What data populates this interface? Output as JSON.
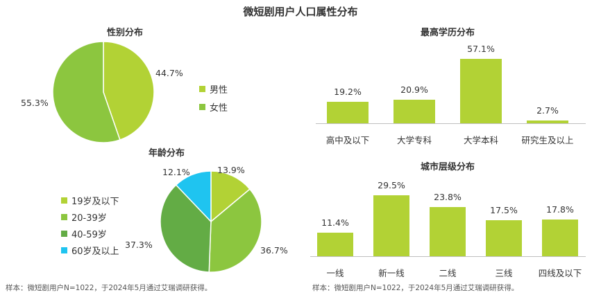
{
  "title": "微短剧用户人口属性分布",
  "source_left": "样本：微短剧用户N=1022，于2024年5月通过艾瑞调研获得。",
  "source_right": "样本：微短剧用户N=1022，于2024年5月通过艾瑞调研获得。",
  "chart_data": [
    {
      "id": "gender",
      "type": "pie",
      "title": "性别分布",
      "categories": [
        "男性",
        "女性"
      ],
      "values": [
        44.7,
        55.3
      ],
      "value_labels": [
        "44.7%",
        "55.3%"
      ],
      "colors": [
        "#b2d235",
        "#8cc63f"
      ]
    },
    {
      "id": "age",
      "type": "pie",
      "title": "年龄分布",
      "categories": [
        "19岁及以下",
        "20-39岁",
        "40-59岁",
        "60岁及以上"
      ],
      "values": [
        13.9,
        36.7,
        37.3,
        12.1
      ],
      "value_labels": [
        "13.9%",
        "36.7%",
        "37.3%",
        "12.1%"
      ],
      "colors": [
        "#b2d235",
        "#8cc63f",
        "#63ac45",
        "#1fc4f0"
      ]
    },
    {
      "id": "education",
      "type": "bar",
      "title": "最高学历分布",
      "categories": [
        "高中及以下",
        "大学专科",
        "大学本科",
        "研究生及以上"
      ],
      "values": [
        19.2,
        20.9,
        57.1,
        2.7
      ],
      "value_labels": [
        "19.2%",
        "20.9%",
        "57.1%",
        "2.7%"
      ],
      "color": "#b2d235"
    },
    {
      "id": "city",
      "type": "bar",
      "title": "城市层级分布",
      "categories": [
        "一线",
        "新一线",
        "二线",
        "三线",
        "四线及以下"
      ],
      "values": [
        11.4,
        29.5,
        23.8,
        17.5,
        17.8
      ],
      "value_labels": [
        "11.4%",
        "29.5%",
        "23.8%",
        "17.5%",
        "17.8%"
      ],
      "color": "#b2d235"
    }
  ]
}
